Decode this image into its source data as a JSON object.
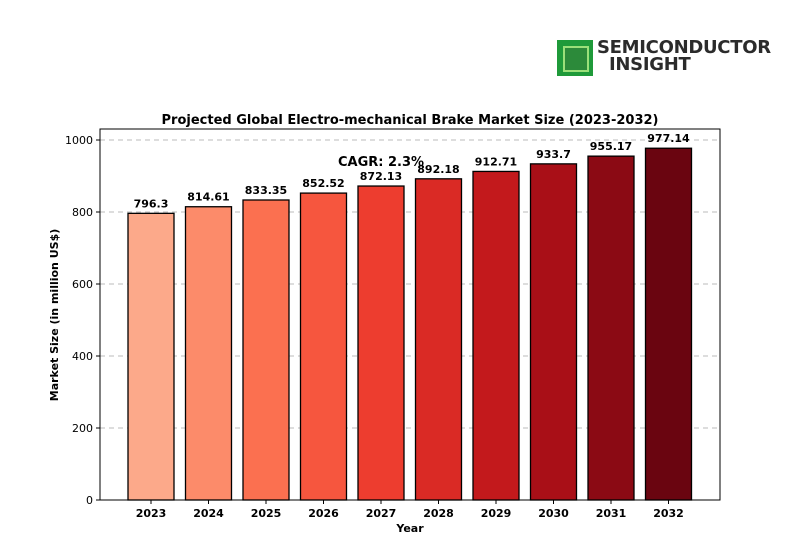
{
  "brand": {
    "line1": "SEMICONDUCTOR",
    "line2": "INSIGHT",
    "icon": "chip-icon"
  },
  "chart_data": {
    "type": "bar",
    "title": "Projected Global Electro-mechanical Brake Market Size (2023-2032)",
    "xlabel": "Year",
    "ylabel": "Market Size (in million US$)",
    "categories": [
      "2023",
      "2024",
      "2025",
      "2026",
      "2027",
      "2028",
      "2029",
      "2030",
      "2031",
      "2032"
    ],
    "values": [
      796.3,
      814.61,
      833.35,
      852.52,
      872.13,
      892.18,
      912.71,
      933.7,
      955.17,
      977.14
    ],
    "value_labels": [
      "796.3",
      "814.61",
      "833.35",
      "852.52",
      "872.13",
      "892.18",
      "912.71",
      "933.7",
      "955.17",
      "977.14"
    ],
    "colors": [
      "#fca98a",
      "#fc8b6a",
      "#fb7050",
      "#f6563e",
      "#ed3d2f",
      "#da2a25",
      "#c3191c",
      "#a90f17",
      "#8b0a14",
      "#6a0510"
    ],
    "annotation": "CAGR: 2.3%",
    "ylim": [
      0,
      1000
    ],
    "yticks": [
      0,
      200,
      400,
      600,
      800,
      1000
    ],
    "grid": "y-dashed"
  }
}
